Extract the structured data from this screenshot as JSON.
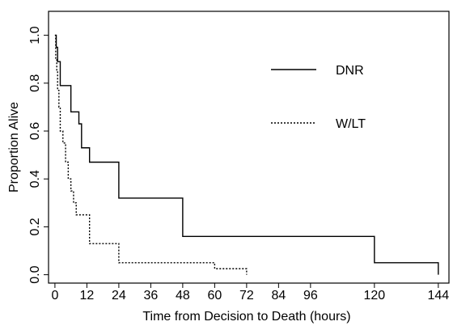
{
  "chart_data": {
    "type": "step",
    "x_label": "Time from Decision to Death (hours)",
    "y_label": "Proportion Alive",
    "xlim": [
      -2.4,
      148
    ],
    "ylim": [
      -0.035,
      1.1
    ],
    "xticks": [
      0,
      12,
      24,
      36,
      48,
      60,
      72,
      84,
      96,
      120,
      144
    ],
    "yticks": [
      {
        "value": 0,
        "label": "0.0"
      },
      0.2,
      0.4,
      0.6,
      0.8,
      {
        "value": 1,
        "label": "1.0"
      }
    ],
    "legend": "right",
    "series": [
      {
        "name": "DNR",
        "color": "#000000",
        "style": "solid",
        "x": [
          0,
          0.5,
          1,
          2,
          6,
          9,
          10,
          13,
          24,
          48,
          120,
          144
        ],
        "values": [
          1,
          0.95,
          0.89,
          0.79,
          0.68,
          0.63,
          0.53,
          0.47,
          0.32,
          0.16,
          0.05,
          0
        ]
      },
      {
        "name": "W/LT",
        "color": "#000000",
        "style": "dotted",
        "x": [
          0,
          0.3,
          0.7,
          1,
          1.5,
          2,
          3,
          4,
          5,
          6,
          7,
          8,
          13,
          24,
          60,
          72
        ],
        "values": [
          1,
          0.9,
          0.85,
          0.77,
          0.7,
          0.6,
          0.55,
          0.47,
          0.4,
          0.35,
          0.3,
          0.25,
          0.13,
          0.05,
          0.025,
          0
        ]
      }
    ]
  }
}
